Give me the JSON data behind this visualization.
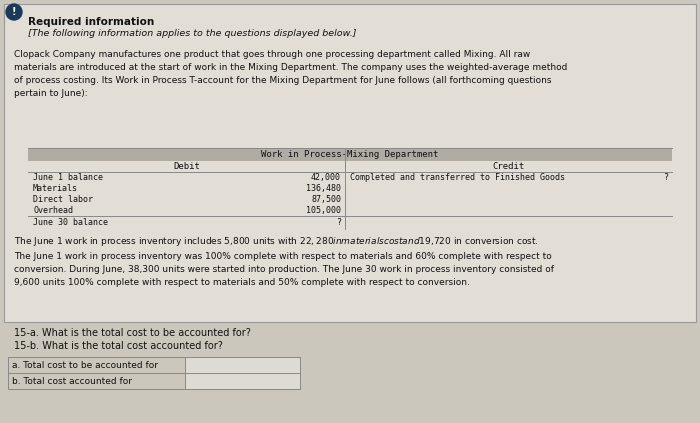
{
  "bg_color": "#cbc7bc",
  "panel_color": "#e2ddd5",
  "panel_border_color": "#999999",
  "title_bold": "Required information",
  "italic_line": "[The following information applies to the questions displayed below.]",
  "paragraph": "Clopack Company manufactures one product that goes through one processing department called Mixing. All raw\nmaterials are introduced at the start of work in the Mixing Department. The company uses the weighted-average method\nof process costing. Its Work in Process T-account for the Mixing Department for June follows (all forthcoming questions\npertain to June):",
  "table_title": "Work in Process-Mixing Department",
  "debit_header": "Debit",
  "credit_header": "Credit",
  "debit_rows": [
    [
      "June 1 balance",
      "42,000"
    ],
    [
      "Materials",
      "136,480"
    ],
    [
      "Direct labor",
      "87,500"
    ],
    [
      "Overhead",
      "105,000"
    ]
  ],
  "debit_footer": [
    "June 30 balance",
    "?"
  ],
  "credit_rows": [
    [
      "Completed and transferred to Finished Goods",
      "?"
    ]
  ],
  "paragraph2": "The June 1 work in process inventory includes 5,800 units with $22,280 in materials cost and $19,720 in conversion cost.\nThe June 1 work in process inventory was 100% complete with respect to materials and 60% complete with respect to\nconversion. During June, 38,300 units were started into production. The June 30 work in process inventory consisted of\n9,600 units 100% complete with respect to materials and 50% complete with respect to conversion.",
  "question_a": "15-a. What is the total cost to be accounted for?",
  "question_b": "15-b. What is the total cost accounted for?",
  "answer_label_a": "a. Total cost to be accounted for",
  "answer_label_b": "b. Total cost accounted for",
  "icon_color": "#1a3a5c",
  "icon_label": "!",
  "table_header_bg": "#b0aca4",
  "table_row_bg": "#e2ddd5",
  "answer_box_color": "#d0cdc8"
}
